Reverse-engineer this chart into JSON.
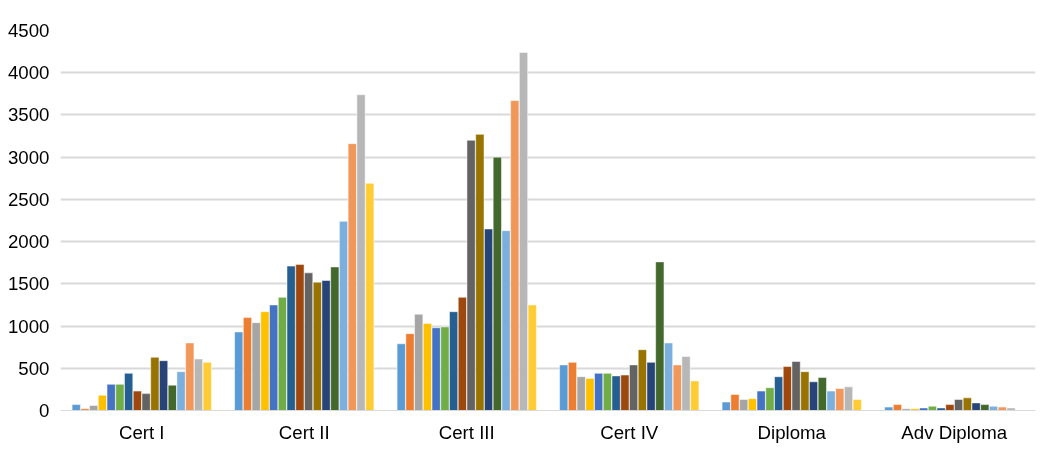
{
  "chart_data": {
    "type": "bar",
    "categories": [
      "Cert I",
      "Cert II",
      "Cert III",
      "Cert IV",
      "Diploma",
      "Adv Diploma"
    ],
    "ylim": [
      0,
      4500
    ],
    "yticks": [
      0,
      500,
      1000,
      1500,
      2000,
      2500,
      3000,
      3500,
      4000,
      4500
    ],
    "grid": "y",
    "series": [
      {
        "color": "#5b9bd5",
        "values": [
          70,
          930,
          790,
          540,
          100,
          40
        ]
      },
      {
        "color": "#ed7d31",
        "values": [
          20,
          1100,
          910,
          570,
          190,
          70
        ]
      },
      {
        "color": "#a5a5a5",
        "values": [
          60,
          1040,
          1140,
          400,
          130,
          20
        ]
      },
      {
        "color": "#ffc000",
        "values": [
          180,
          1170,
          1030,
          380,
          140,
          20
        ]
      },
      {
        "color": "#4472c4",
        "values": [
          310,
          1250,
          980,
          440,
          230,
          30
        ]
      },
      {
        "color": "#70ad47",
        "values": [
          310,
          1340,
          990,
          440,
          270,
          50
        ]
      },
      {
        "color": "#255e91",
        "values": [
          440,
          1710,
          1170,
          410,
          400,
          30
        ]
      },
      {
        "color": "#9e480e",
        "values": [
          230,
          1730,
          1340,
          420,
          520,
          70
        ]
      },
      {
        "color": "#636363",
        "values": [
          200,
          1630,
          3200,
          540,
          580,
          130
        ]
      },
      {
        "color": "#997300",
        "values": [
          630,
          1520,
          3270,
          720,
          460,
          150
        ]
      },
      {
        "color": "#264478",
        "values": [
          590,
          1540,
          2150,
          570,
          340,
          90
        ]
      },
      {
        "color": "#43682b",
        "values": [
          300,
          1700,
          3000,
          1760,
          390,
          70
        ]
      },
      {
        "color": "#7cafdd",
        "values": [
          460,
          2240,
          2130,
          800,
          230,
          50
        ]
      },
      {
        "color": "#f1975a",
        "values": [
          800,
          3160,
          3670,
          540,
          260,
          40
        ]
      },
      {
        "color": "#b7b7b7",
        "values": [
          610,
          3740,
          4240,
          640,
          280,
          30
        ]
      },
      {
        "color": "#ffcd33",
        "values": [
          570,
          2690,
          1250,
          350,
          130,
          null
        ]
      }
    ]
  }
}
